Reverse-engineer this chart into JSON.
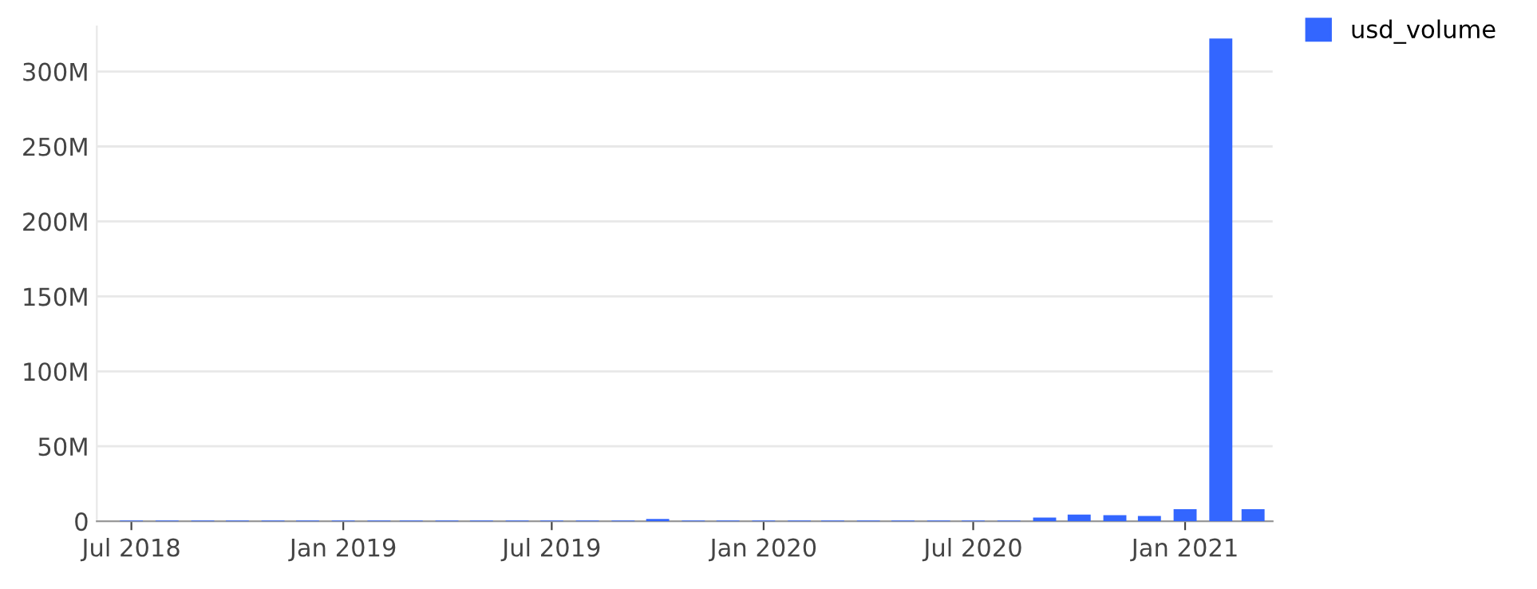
{
  "chart_data": {
    "type": "bar",
    "x": [
      "2018-07",
      "2018-08",
      "2018-09",
      "2018-10",
      "2018-11",
      "2018-12",
      "2019-01",
      "2019-02",
      "2019-03",
      "2019-04",
      "2019-05",
      "2019-06",
      "2019-07",
      "2019-08",
      "2019-09",
      "2019-10",
      "2019-11",
      "2019-12",
      "2020-01",
      "2020-02",
      "2020-03",
      "2020-04",
      "2020-05",
      "2020-06",
      "2020-07",
      "2020-08",
      "2020-09",
      "2020-10",
      "2020-11",
      "2020-12",
      "2021-01",
      "2021-02",
      "2021-03"
    ],
    "series": [
      {
        "name": "usd_volume",
        "color": "#3366ff",
        "values": [
          500000,
          500000,
          500000,
          500000,
          500000,
          500000,
          500000,
          500000,
          500000,
          500000,
          500000,
          500000,
          500000,
          500000,
          500000,
          1500000,
          500000,
          500000,
          500000,
          500000,
          500000,
          500000,
          500000,
          500000,
          500000,
          500000,
          2500000,
          4500000,
          4000000,
          3500000,
          8000000,
          322000000,
          8000000
        ]
      }
    ],
    "xlim": [
      "2018-06-01",
      "2021-03-18"
    ],
    "xticks": [
      {
        "value": "2018-07-01",
        "label": "Jul 2018"
      },
      {
        "value": "2019-01-01",
        "label": "Jan 2019"
      },
      {
        "value": "2019-07-01",
        "label": "Jul 2019"
      },
      {
        "value": "2020-01-01",
        "label": "Jan 2020"
      },
      {
        "value": "2020-07-01",
        "label": "Jul 2020"
      },
      {
        "value": "2021-01-01",
        "label": "Jan 2021"
      }
    ],
    "ylim": [
      0,
      330000000
    ],
    "yticks": [
      {
        "value": 0,
        "label": "0"
      },
      {
        "value": 50000000,
        "label": "50M"
      },
      {
        "value": 100000000,
        "label": "100M"
      },
      {
        "value": 150000000,
        "label": "150M"
      },
      {
        "value": 200000000,
        "label": "200M"
      },
      {
        "value": 250000000,
        "label": "250M"
      },
      {
        "value": 300000000,
        "label": "300M"
      }
    ],
    "grid": "y",
    "legend": "top right"
  }
}
